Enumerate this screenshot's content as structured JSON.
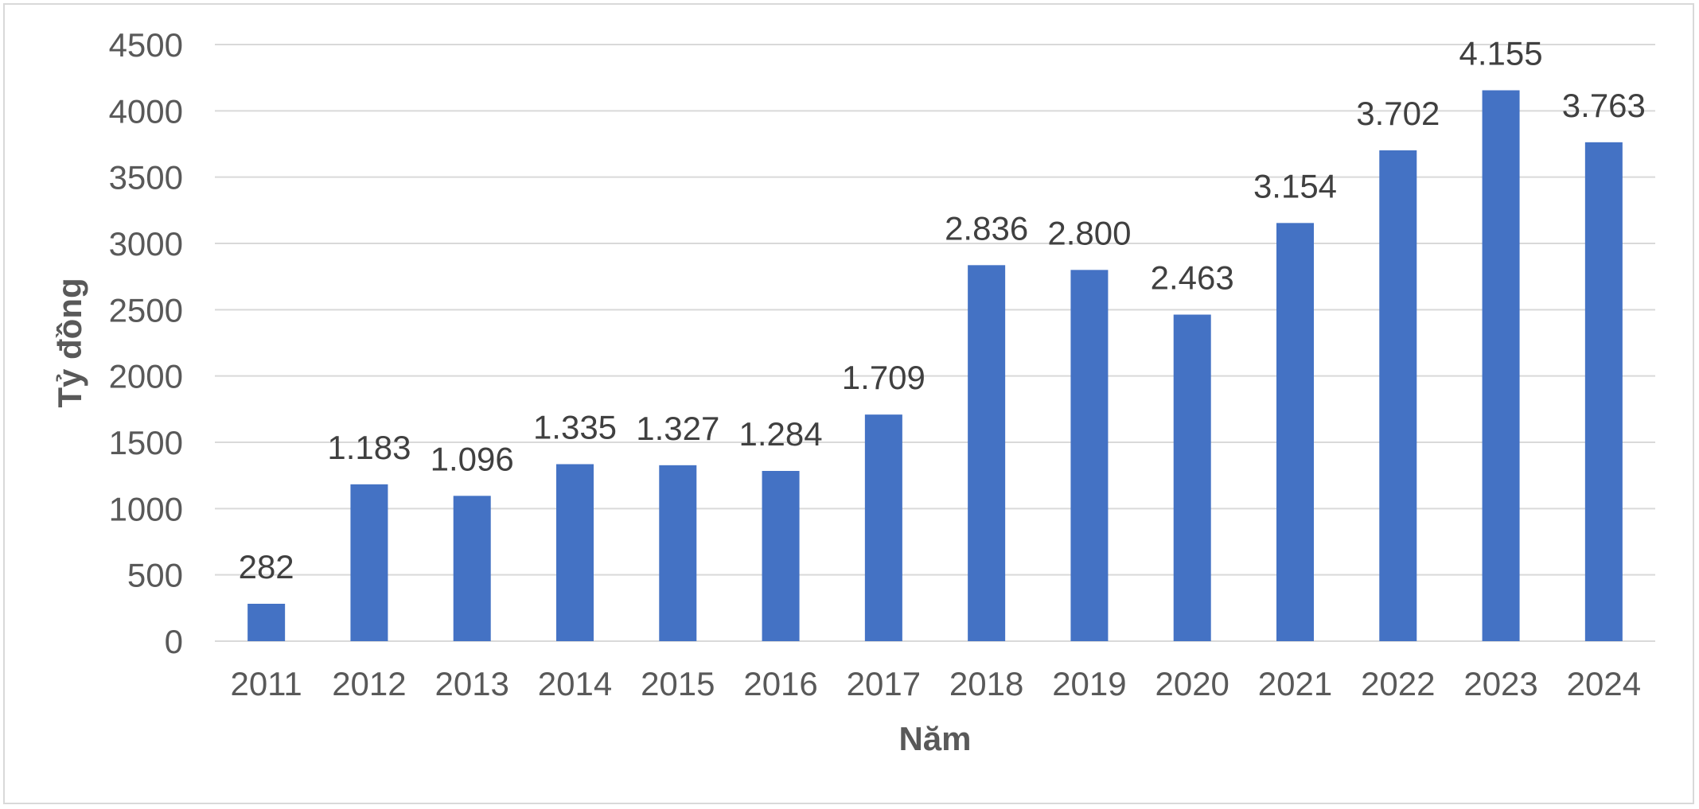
{
  "chart_data": {
    "type": "bar",
    "categories": [
      "2011",
      "2012",
      "2013",
      "2014",
      "2015",
      "2016",
      "2017",
      "2018",
      "2019",
      "2020",
      "2021",
      "2022",
      "2023",
      "2024"
    ],
    "values": [
      282,
      1183,
      1096,
      1335,
      1327,
      1284,
      1709,
      2836,
      2800,
      2463,
      3154,
      3702,
      4155,
      3763
    ],
    "data_labels": [
      "282",
      "1.183",
      "1.096",
      "1.335",
      "1.327",
      "1.284",
      "1.709",
      "2.836",
      "2.800",
      "2.463",
      "3.154",
      "3.702",
      "4.155",
      "3.763"
    ],
    "title": "",
    "xlabel": "Năm",
    "ylabel": "Tỷ đồng",
    "ylim": [
      0,
      4500
    ],
    "yticks": [
      0,
      500,
      1000,
      1500,
      2000,
      2500,
      3000,
      3500,
      4000,
      4500
    ],
    "grid": true,
    "legend": "none",
    "bar_color": "#4472c4",
    "grid_color": "#d9d9d9",
    "tick_color": "#595959",
    "label_color": "#404040"
  }
}
